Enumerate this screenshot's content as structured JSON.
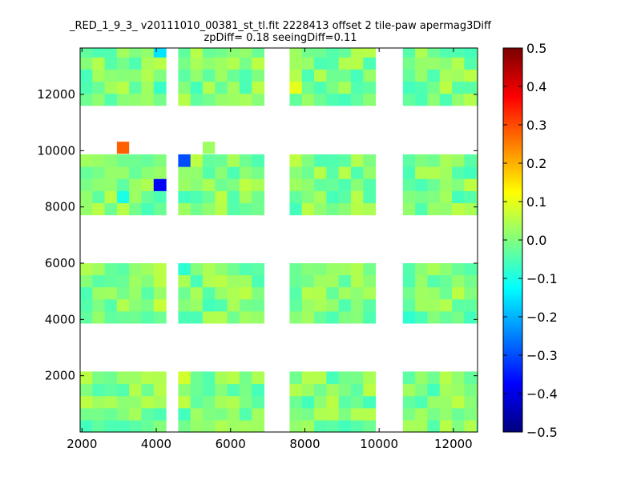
{
  "chart_data": {
    "type": "heatmap",
    "title": "_RED_1_9_3_ v20111010_00381_st_tl.fit 2228413 offset 2 tile-paw apermag3Diff",
    "subtitle": "zpDiff= 0.18 seeingDiff=0.11",
    "xlabel": "",
    "ylabel": "",
    "xlim": [
      1950,
      12650
    ],
    "ylim": [
      0,
      13650
    ],
    "x_ticks": [
      "2000",
      "4000",
      "6000",
      "8000",
      "10000",
      "12000"
    ],
    "y_ticks": [
      "2000",
      "4000",
      "6000",
      "8000",
      "10000",
      "12000"
    ],
    "colorbar": {
      "colormap": "jet",
      "range": [
        -0.5,
        0.5
      ],
      "ticks": [
        "0.5",
        "0.4",
        "0.3",
        "0.2",
        "0.1",
        "0.0",
        "−0.1",
        "−0.2",
        "−0.3",
        "−0.4",
        "−0.5"
      ]
    },
    "cell_size": [
      330,
      430
    ],
    "columns": [
      {
        "x_range": [
          1950,
          4260
        ],
        "rows": [
          {
            "y_range": [
              0,
              2150
            ]
          },
          {
            "y_range": [
              3870,
              6000
            ]
          },
          {
            "y_range": [
              7720,
              9870
            ]
          },
          {
            "y_range": [
              11610,
              13650
            ]
          }
        ]
      },
      {
        "x_range": [
          4590,
          6900
        ],
        "rows": [
          {
            "y_range": [
              0,
              2150
            ]
          },
          {
            "y_range": [
              3870,
              6000
            ]
          },
          {
            "y_range": [
              7720,
              9870
            ]
          },
          {
            "y_range": [
              11610,
              13650
            ]
          }
        ]
      },
      {
        "x_range": [
          7590,
          9900
        ],
        "rows": [
          {
            "y_range": [
              0,
              2150
            ]
          },
          {
            "y_range": [
              3870,
              6000
            ]
          },
          {
            "y_range": [
              7720,
              9870
            ]
          },
          {
            "y_range": [
              11610,
              13650
            ]
          }
        ]
      },
      {
        "x_range": [
          10640,
          12650
        ],
        "rows": [
          {
            "y_range": [
              0,
              2150
            ]
          },
          {
            "y_range": [
              3870,
              6000
            ]
          },
          {
            "y_range": [
              7720,
              9870
            ]
          },
          {
            "y_range": [
              11610,
              13650
            ]
          }
        ]
      }
    ],
    "default_value": 0.0,
    "outliers": [
      {
        "x": 4100,
        "y": 13500,
        "value": -0.15
      },
      {
        "x": 4100,
        "y": 12200,
        "value": -0.07
      },
      {
        "x": 3150,
        "y": 10100,
        "value": 0.28
      },
      {
        "x": 5500,
        "y": 10100,
        "value": 0.03
      },
      {
        "x": 4750,
        "y": 9150,
        "value": -0.3
      },
      {
        "x": 4100,
        "y": 8400,
        "value": -0.38
      },
      {
        "x": 3150,
        "y": 8000,
        "value": -0.1
      },
      {
        "x": 4750,
        "y": 8000,
        "value": -0.06
      },
      {
        "x": 7750,
        "y": 12300,
        "value": 0.1
      },
      {
        "x": 7750,
        "y": 9200,
        "value": 0.06
      },
      {
        "x": 4750,
        "y": 5800,
        "value": -0.08
      },
      {
        "x": 4100,
        "y": 4500,
        "value": 0.07
      },
      {
        "x": 10800,
        "y": 4000,
        "value": -0.08
      },
      {
        "x": 12300,
        "y": 4000,
        "value": -0.06
      },
      {
        "x": 4750,
        "y": 2000,
        "value": 0.08
      },
      {
        "x": 4750,
        "y": 600,
        "value": -0.06
      },
      {
        "x": 10800,
        "y": 200,
        "value": 0.04
      },
      {
        "x": 10800,
        "y": 12200,
        "value": -0.06
      },
      {
        "x": 12450,
        "y": 9800,
        "value": 0.04
      }
    ],
    "grid": false,
    "legend": "none"
  }
}
